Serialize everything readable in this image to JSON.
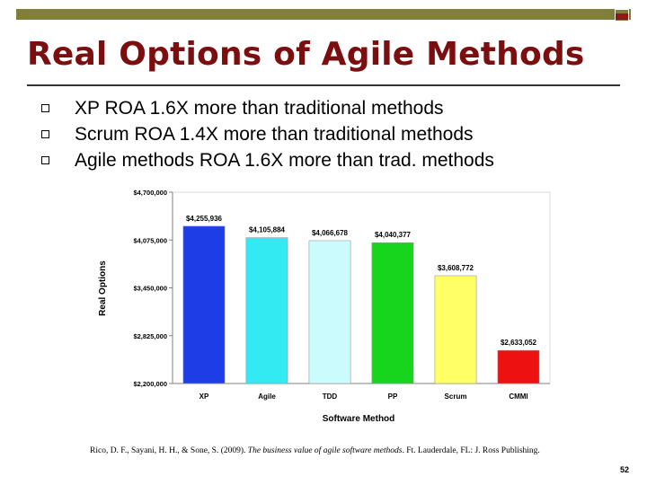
{
  "slide": {
    "title": "Real Options of Agile Methods",
    "bullets": [
      "XP ROA 1.6X more than traditional methods",
      "Scrum ROA 1.4X more than traditional methods",
      "Agile methods ROA 1.6X more than trad. methods"
    ],
    "citation_authors": "Rico, D. F., Sayani, H. H., & Sone, S. (2009). ",
    "citation_title": "The business value of agile software methods",
    "citation_rest": ". Ft. Lauderdale, FL: J. Ross Publishing.",
    "page_number": "52",
    "colors": {
      "title": "#7b0e0e",
      "top_bar": "#7f7f3a",
      "accent_box": "#8b1a1a"
    }
  },
  "chart_data": {
    "type": "bar",
    "title": "",
    "xlabel": "Software Method",
    "ylabel": "Real Options",
    "ylim": [
      2200000,
      4700000
    ],
    "y_ticks": [
      2200000,
      2825000,
      3450000,
      4075000,
      4700000
    ],
    "y_tick_labels": [
      "$2,200,000",
      "$2,825,000",
      "$3,450,000",
      "$4,075,000",
      "$4,700,000"
    ],
    "categories": [
      "XP",
      "Agile",
      "TDD",
      "PP",
      "Scrum",
      "CMMI"
    ],
    "values": [
      4255936,
      4105884,
      4066678,
      4040377,
      3608772,
      2633052
    ],
    "data_labels": [
      "$4,255,936",
      "$4,105,884",
      "$4,066,678",
      "$4,040,377",
      "$3,608,772",
      "$2,633,052"
    ],
    "colors": [
      "#1f3de6",
      "#33e9f2",
      "#ccfbfd",
      "#17d51c",
      "#ffff66",
      "#ee1111"
    ],
    "grid": false,
    "legend": "none"
  }
}
